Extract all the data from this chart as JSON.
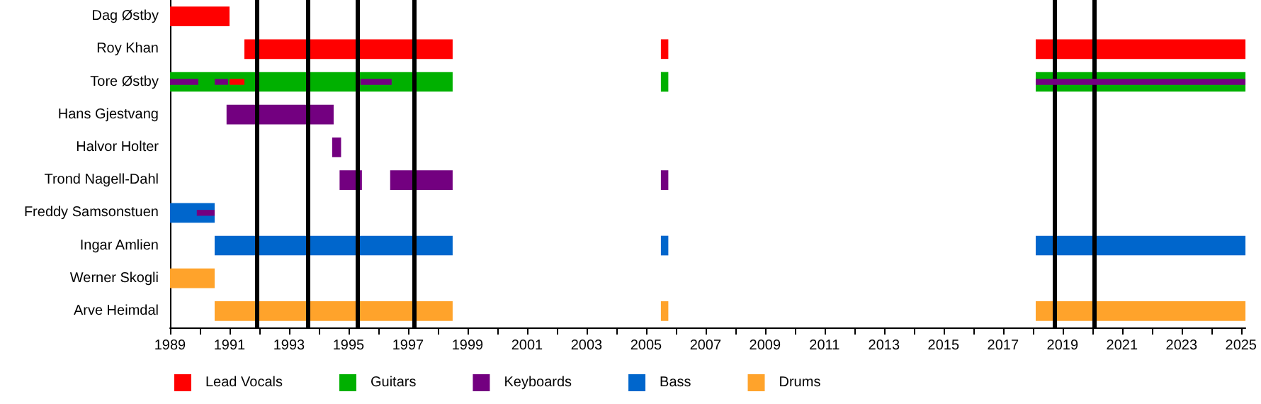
{
  "chart_data": {
    "type": "bar",
    "orientation": "horizontal",
    "categories": [
      "Dag Østby",
      "Roy Khan",
      "Tore Østby",
      "Hans Gjestvang",
      "Halvor Holter",
      "Trond Nagell-Dahl",
      "Freddy Samsonstuen",
      "Ingar Amlien",
      "Werner Skogli",
      "Arve Heimdal"
    ],
    "series": [
      {
        "name": "Lead Vocals",
        "color": "#ff0000",
        "base": [
          1989,
          1991.5,
          1991.0,
          null,
          null,
          null,
          null,
          null,
          null,
          null
        ],
        "values": [
          2.0,
          7.0,
          0.5,
          null,
          null,
          null,
          null,
          null,
          null,
          null
        ]
      },
      {
        "color": "#ff0000",
        "base": [
          null,
          2005.5,
          null,
          null,
          null,
          null,
          null,
          null,
          null,
          null
        ],
        "values": [
          null,
          0.25,
          null,
          null,
          null,
          null,
          null,
          null,
          null,
          null
        ]
      },
      {
        "color": "#ff0000",
        "base": [
          null,
          2018.1,
          null,
          null,
          null,
          null,
          null,
          null,
          null,
          null
        ],
        "values": [
          null,
          7.05,
          null,
          null,
          null,
          null,
          null,
          null,
          null,
          null
        ]
      },
      {
        "name": "Guitars",
        "color": "#00b000",
        "base": [
          null,
          null,
          1989,
          null,
          null,
          null,
          null,
          null,
          null,
          null
        ],
        "values": [
          null,
          null,
          9.5,
          null,
          null,
          null,
          null,
          null,
          null,
          null
        ]
      },
      {
        "color": "#00b000",
        "base": [
          null,
          null,
          2005.5,
          null,
          null,
          null,
          null,
          null,
          null,
          null
        ],
        "values": [
          null,
          null,
          0.25,
          null,
          null,
          null,
          null,
          null,
          null,
          null
        ]
      },
      {
        "color": "#00b000",
        "base": [
          null,
          null,
          2018.1,
          null,
          null,
          null,
          null,
          null,
          null,
          null
        ],
        "values": [
          null,
          null,
          7.05,
          null,
          null,
          null,
          null,
          null,
          null,
          null
        ]
      },
      {
        "name": "Keyboards",
        "color": "#730080",
        "base": [
          null,
          null,
          1989,
          1990.9,
          1994.45,
          1994.7,
          1989.9,
          null,
          null,
          null
        ],
        "values": [
          null,
          null,
          0.95,
          3.6,
          0.3,
          0.75,
          0.6,
          null,
          null,
          null
        ]
      },
      {
        "color": "#730080",
        "base": [
          null,
          null,
          1990.5,
          null,
          null,
          1996.4,
          null,
          null,
          null,
          null
        ],
        "values": [
          null,
          null,
          0.45,
          null,
          null,
          2.1,
          null,
          null,
          null,
          null
        ]
      },
      {
        "color": "#730080",
        "base": [
          null,
          null,
          1995.4,
          null,
          null,
          2005.5,
          null,
          null,
          null,
          null
        ],
        "values": [
          null,
          null,
          1.05,
          null,
          null,
          0.25,
          null,
          null,
          null,
          null
        ]
      },
      {
        "color": "#730080",
        "base": [
          null,
          null,
          2018.1,
          null,
          null,
          null,
          null,
          null,
          null,
          null
        ],
        "values": [
          null,
          null,
          7.05,
          null,
          null,
          null,
          null,
          null,
          null,
          null
        ]
      },
      {
        "name": "Bass",
        "color": "#0066cc",
        "base": [
          null,
          null,
          null,
          null,
          null,
          null,
          1989,
          1990.5,
          null,
          null
        ],
        "values": [
          null,
          null,
          null,
          null,
          null,
          null,
          1.5,
          8.0,
          null,
          null
        ]
      },
      {
        "color": "#0066cc",
        "base": [
          null,
          null,
          null,
          null,
          null,
          null,
          null,
          2005.5,
          null,
          null
        ],
        "values": [
          null,
          null,
          null,
          null,
          null,
          null,
          null,
          0.25,
          null,
          null
        ]
      },
      {
        "color": "#0066cc",
        "base": [
          null,
          null,
          null,
          null,
          null,
          null,
          null,
          2018.1,
          null,
          null
        ],
        "values": [
          null,
          null,
          null,
          null,
          null,
          null,
          null,
          7.05,
          null,
          null
        ]
      },
      {
        "name": "Drums",
        "color": "#ffa32b",
        "base": [
          null,
          null,
          null,
          null,
          null,
          null,
          null,
          null,
          1989,
          1990.5
        ],
        "values": [
          null,
          null,
          null,
          null,
          null,
          null,
          null,
          null,
          1.5,
          8.0
        ]
      },
      {
        "color": "#ffa32b",
        "base": [
          null,
          null,
          null,
          null,
          null,
          null,
          null,
          null,
          null,
          2005.5
        ],
        "values": [
          null,
          null,
          null,
          null,
          null,
          null,
          null,
          null,
          null,
          0.25
        ]
      },
      {
        "color": "#ffa32b",
        "base": [
          null,
          null,
          null,
          null,
          null,
          null,
          null,
          null,
          null,
          2018.1
        ],
        "values": [
          null,
          null,
          null,
          null,
          null,
          null,
          null,
          null,
          null,
          7.05
        ]
      }
    ],
    "xlim": [
      1989,
      2025.15
    ],
    "xticks": [
      1989,
      {
        "value": 1990,
        "label": null
      },
      1991,
      {
        "value": 1992,
        "label": null
      },
      1993,
      {
        "value": 1994,
        "label": null
      },
      1995,
      {
        "value": 1996,
        "label": null
      },
      1997,
      {
        "value": 1998,
        "label": null
      },
      1999,
      {
        "value": 2000,
        "label": null
      },
      2001,
      {
        "value": 2002,
        "label": null
      },
      2003,
      {
        "value": 2004,
        "label": null
      },
      2005,
      {
        "value": 2006,
        "label": null
      },
      2007,
      {
        "value": 2008,
        "label": null
      },
      2009,
      {
        "value": 2010,
        "label": null
      },
      2011,
      {
        "value": 2012,
        "label": null
      },
      2013,
      {
        "value": 2014,
        "label": null
      },
      2015,
      {
        "value": 2016,
        "label": null
      },
      2017,
      {
        "value": 2018,
        "label": null
      },
      2019,
      {
        "value": 2020,
        "label": null
      },
      2021,
      {
        "value": 2022,
        "label": null
      },
      2023,
      {
        "value": 2024,
        "label": null
      },
      2025
    ],
    "ref_lines": [
      {
        "axis": "x",
        "value": 1991.92,
        "color": "#000000"
      },
      {
        "axis": "x",
        "value": 1993.65,
        "color": "#000000"
      },
      {
        "axis": "x",
        "value": 1995.29,
        "color": "#000000"
      },
      {
        "axis": "x",
        "value": 1997.19,
        "color": "#000000"
      },
      {
        "axis": "x",
        "value": 2018.75,
        "color": "#000000"
      },
      {
        "axis": "x",
        "value": 2020.05,
        "color": "#000000"
      }
    ],
    "grid": false,
    "legend": "bottom left"
  }
}
